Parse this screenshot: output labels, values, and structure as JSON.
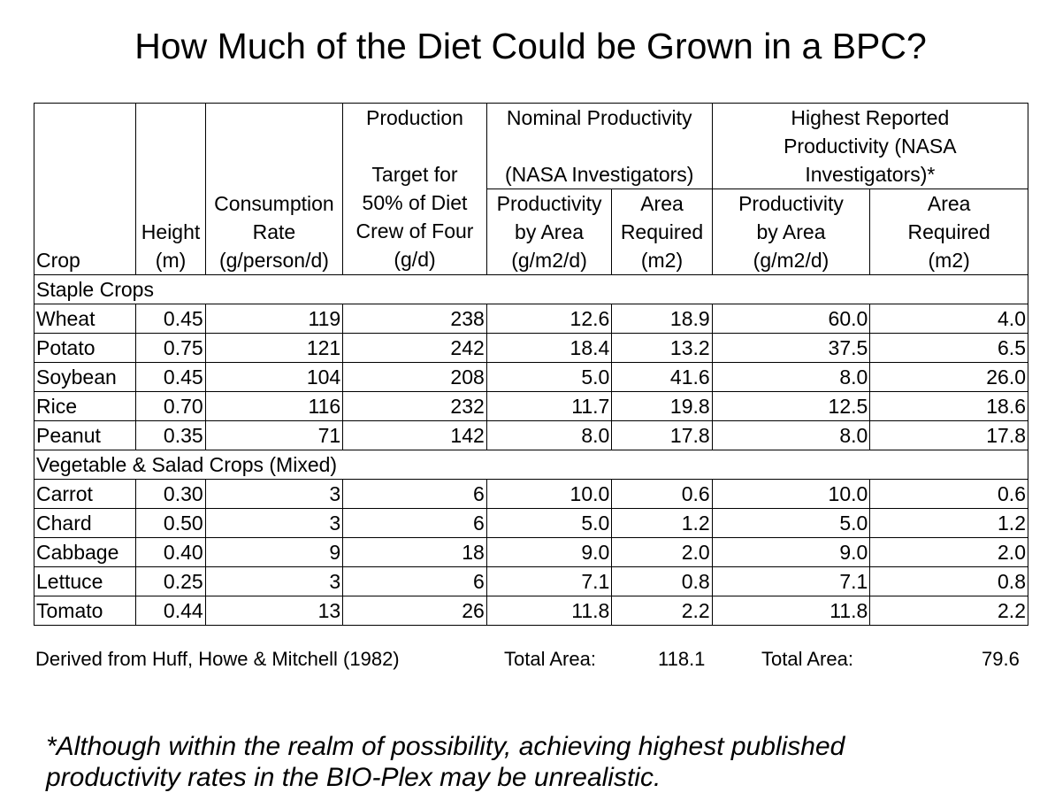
{
  "title": "How Much of the Diet Could be Grown in a BPC?",
  "table": {
    "headers": {
      "crop": "Crop",
      "height_line1": "Height",
      "height_line2": "(m)",
      "consumption_line1": "Consumption",
      "consumption_line2": "Rate",
      "consumption_line3": "(g/person/d)",
      "production_line1": "Production",
      "production_line2": "Target for",
      "production_line3": "50% of Diet",
      "production_line4": "Crew of Four",
      "production_line5": "(g/d)",
      "nominal_group_line1": "Nominal Productivity",
      "nominal_group_line2": "(NASA Investigators)",
      "highest_group_line1": "Highest Reported",
      "highest_group_line2": "Productivity (NASA",
      "highest_group_line3": "Investigators)*",
      "productivity_line1": "Productivity",
      "productivity_line2": "by Area",
      "productivity_line3": "(g/m2/d)",
      "area_line1": "Area",
      "area_line2": "Required",
      "area_line3": "(m2)"
    },
    "sections": [
      {
        "name": "Staple Crops",
        "rows": [
          {
            "crop": "Wheat",
            "height": "0.45",
            "consumption": "119",
            "target": "238",
            "nom_prod": "12.6",
            "nom_area": "18.9",
            "high_prod": "60.0",
            "high_area": "4.0"
          },
          {
            "crop": "Potato",
            "height": "0.75",
            "consumption": "121",
            "target": "242",
            "nom_prod": "18.4",
            "nom_area": "13.2",
            "high_prod": "37.5",
            "high_area": "6.5"
          },
          {
            "crop": "Soybean",
            "height": "0.45",
            "consumption": "104",
            "target": "208",
            "nom_prod": "5.0",
            "nom_area": "41.6",
            "high_prod": "8.0",
            "high_area": "26.0"
          },
          {
            "crop": "Rice",
            "height": "0.70",
            "consumption": "116",
            "target": "232",
            "nom_prod": "11.7",
            "nom_area": "19.8",
            "high_prod": "12.5",
            "high_area": "18.6"
          },
          {
            "crop": "Peanut",
            "height": "0.35",
            "consumption": "71",
            "target": "142",
            "nom_prod": "8.0",
            "nom_area": "17.8",
            "high_prod": "8.0",
            "high_area": "17.8"
          }
        ]
      },
      {
        "name": "Vegetable & Salad Crops (Mixed)",
        "rows": [
          {
            "crop": "Carrot",
            "height": "0.30",
            "consumption": "3",
            "target": "6",
            "nom_prod": "10.0",
            "nom_area": "0.6",
            "high_prod": "10.0",
            "high_area": "0.6"
          },
          {
            "crop": "Chard",
            "height": "0.50",
            "consumption": "3",
            "target": "6",
            "nom_prod": "5.0",
            "nom_area": "1.2",
            "high_prod": "5.0",
            "high_area": "1.2"
          },
          {
            "crop": "Cabbage",
            "height": "0.40",
            "consumption": "9",
            "target": "18",
            "nom_prod": "9.0",
            "nom_area": "2.0",
            "high_prod": "9.0",
            "high_area": "2.0"
          },
          {
            "crop": "Lettuce",
            "height": "0.25",
            "consumption": "3",
            "target": "6",
            "nom_prod": "7.1",
            "nom_area": "0.8",
            "high_prod": "7.1",
            "high_area": "0.8"
          },
          {
            "crop": "Tomato",
            "height": "0.44",
            "consumption": "13",
            "target": "26",
            "nom_prod": "11.8",
            "nom_area": "2.2",
            "high_prod": "11.8",
            "high_area": "2.2"
          }
        ]
      }
    ]
  },
  "footer": {
    "source": "Derived from Huff, Howe & Mitchell (1982)",
    "total_label_1": "Total Area:",
    "total_value_1": "118.1",
    "total_label_2": "Total Area:",
    "total_value_2": "79.6"
  },
  "note": {
    "line1": "*Although within the realm of possibility, achieving highest published",
    "line2": "productivity rates in the BIO-Plex may be unrealistic."
  }
}
